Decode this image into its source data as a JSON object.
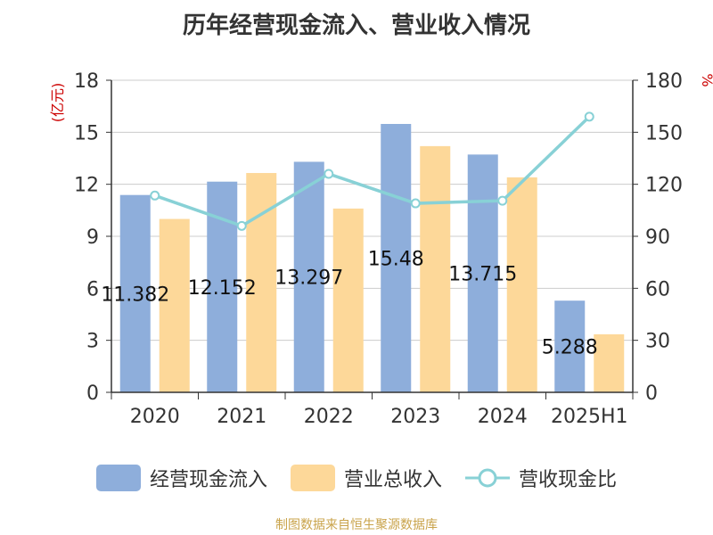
{
  "chart_data": {
    "type": "bar",
    "title": "历年经营现金流入、营业收入情况",
    "categories": [
      "2020",
      "2021",
      "2022",
      "2023",
      "2024",
      "2025H1"
    ],
    "series": [
      {
        "name": "经营现金流入",
        "type": "bar",
        "axis": "left",
        "color": "#8eaedb",
        "values": [
          11.382,
          12.152,
          13.297,
          15.48,
          13.715,
          5.288
        ],
        "labels": [
          "11.382",
          "12.152",
          "13.297",
          "15.48",
          "13.715",
          "5.288"
        ]
      },
      {
        "name": "营业总收入",
        "type": "bar",
        "axis": "left",
        "color": "#fdd899",
        "values": [
          10.0,
          12.65,
          10.6,
          14.2,
          12.4,
          3.35
        ]
      },
      {
        "name": "营收现金比",
        "type": "line",
        "axis": "right",
        "color": "#88d1d6",
        "values": [
          113.5,
          96,
          126,
          109,
          110.5,
          159
        ]
      }
    ],
    "y_left": {
      "label": "(亿元)",
      "ylim": [
        0,
        18
      ],
      "ticks": [
        0,
        3,
        6,
        9,
        12,
        15,
        18
      ]
    },
    "y_right": {
      "label": "%",
      "ylim": [
        0,
        180
      ],
      "ticks": [
        0,
        30,
        60,
        90,
        120,
        150,
        180
      ]
    },
    "grid": true,
    "legend_position": "bottom"
  },
  "footer": "制图数据来自恒生聚源数据库"
}
